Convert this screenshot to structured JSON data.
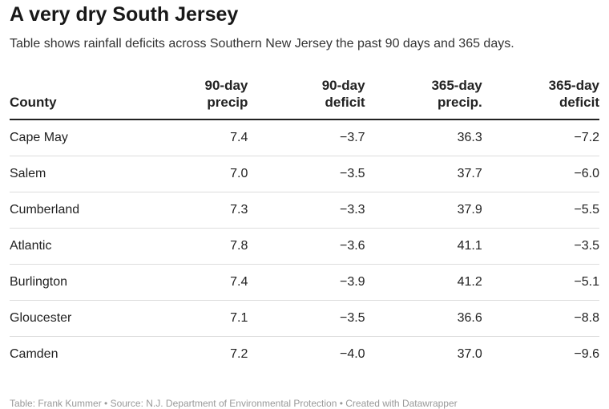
{
  "title": "A very dry South Jersey",
  "subtitle": "Table shows rainfall deficits across Southern New Jersey the past 90 days and 365 days.",
  "footer": "Table: Frank Kummer • Source: N.J. Department of Environmental Protection • Created with Datawrapper",
  "chart_data": {
    "type": "table",
    "columns": [
      {
        "label": "County",
        "lines": [
          "County"
        ]
      },
      {
        "label": "90-day precip",
        "lines": [
          "90-day",
          "precip"
        ]
      },
      {
        "label": "90-day deficit",
        "lines": [
          "90-day",
          "deficit"
        ]
      },
      {
        "label": "365-day precip.",
        "lines": [
          "365-day",
          "precip."
        ]
      },
      {
        "label": "365-day deficit",
        "lines": [
          "365-day",
          "deficit"
        ]
      }
    ],
    "rows": [
      {
        "county": "Cape May",
        "precip90": "7.4",
        "deficit90": "−3.7",
        "precip365": "36.3",
        "deficit365": "−7.2"
      },
      {
        "county": "Salem",
        "precip90": "7.0",
        "deficit90": "−3.5",
        "precip365": "37.7",
        "deficit365": "−6.0"
      },
      {
        "county": "Cumberland",
        "precip90": "7.3",
        "deficit90": "−3.3",
        "precip365": "37.9",
        "deficit365": "−5.5"
      },
      {
        "county": "Atlantic",
        "precip90": "7.8",
        "deficit90": "−3.6",
        "precip365": "41.1",
        "deficit365": "−3.5"
      },
      {
        "county": "Burlington",
        "precip90": "7.4",
        "deficit90": "−3.9",
        "precip365": "41.2",
        "deficit365": "−5.1"
      },
      {
        "county": "Gloucester",
        "precip90": "7.1",
        "deficit90": "−3.5",
        "precip365": "36.6",
        "deficit365": "−8.8"
      },
      {
        "county": "Camden",
        "precip90": "7.2",
        "deficit90": "−4.0",
        "precip365": "37.0",
        "deficit365": "−9.6"
      }
    ]
  }
}
